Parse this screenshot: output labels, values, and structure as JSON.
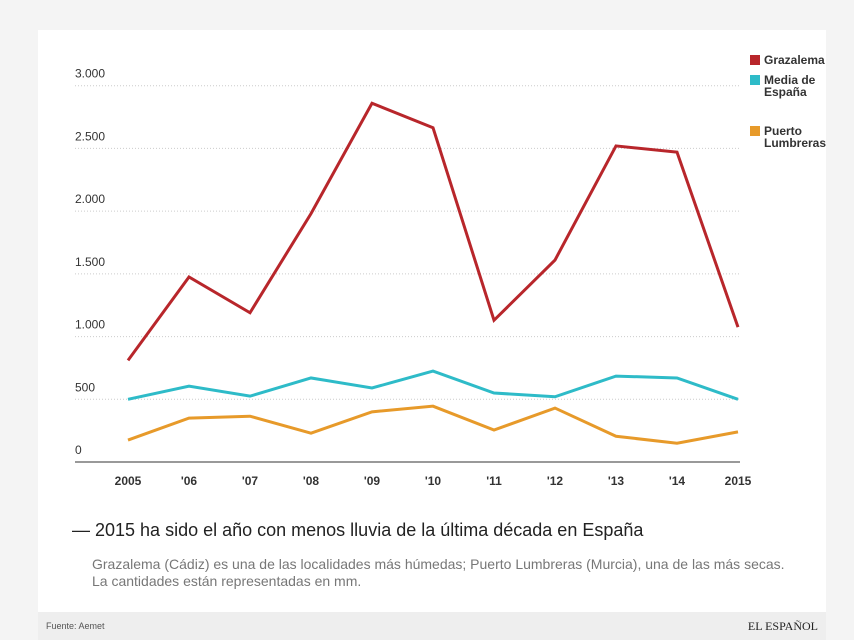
{
  "chart_data": {
    "type": "line",
    "title": "— 2015 ha sido el año con menos lluvia de la última década en España",
    "subtitle": "Grazalema (Cádiz) es una de las localidades más húmedas; Puerto Lumbreras (Murcia), una de las más secas. La cantidades están representadas en mm.",
    "source": "Fuente: Aemet",
    "brand": "EL ESPAÑOL",
    "categories": [
      "2005",
      "'06",
      "'07",
      "'08",
      "'09",
      "'10",
      "'11",
      "'12",
      "'13",
      "'14",
      "2015"
    ],
    "series": [
      {
        "name": "Grazalema",
        "color": "#b8262b",
        "values": [
          810,
          1475,
          1190,
          1980,
          2860,
          2665,
          1130,
          1610,
          2520,
          2470,
          1075
        ]
      },
      {
        "name": "Media de España",
        "color": "#2ebbc8",
        "values": [
          500,
          605,
          525,
          670,
          590,
          725,
          550,
          520,
          685,
          670,
          500
        ]
      },
      {
        "name": "Puerto Lumbreras",
        "color": "#e79a2a",
        "values": [
          175,
          350,
          365,
          230,
          400,
          445,
          255,
          430,
          205,
          150,
          240
        ]
      }
    ],
    "ylim": [
      0,
      3000
    ],
    "yticks": [
      0,
      500,
      {
        "value": 1000,
        "label": "1.000"
      },
      {
        "value": 1500,
        "label": "1.500"
      },
      {
        "value": 2000,
        "label": "2.000"
      },
      {
        "value": 2500,
        "label": "2.500"
      },
      {
        "value": 3000,
        "label": "3.000"
      }
    ],
    "grid": true,
    "legend": "top-right"
  }
}
